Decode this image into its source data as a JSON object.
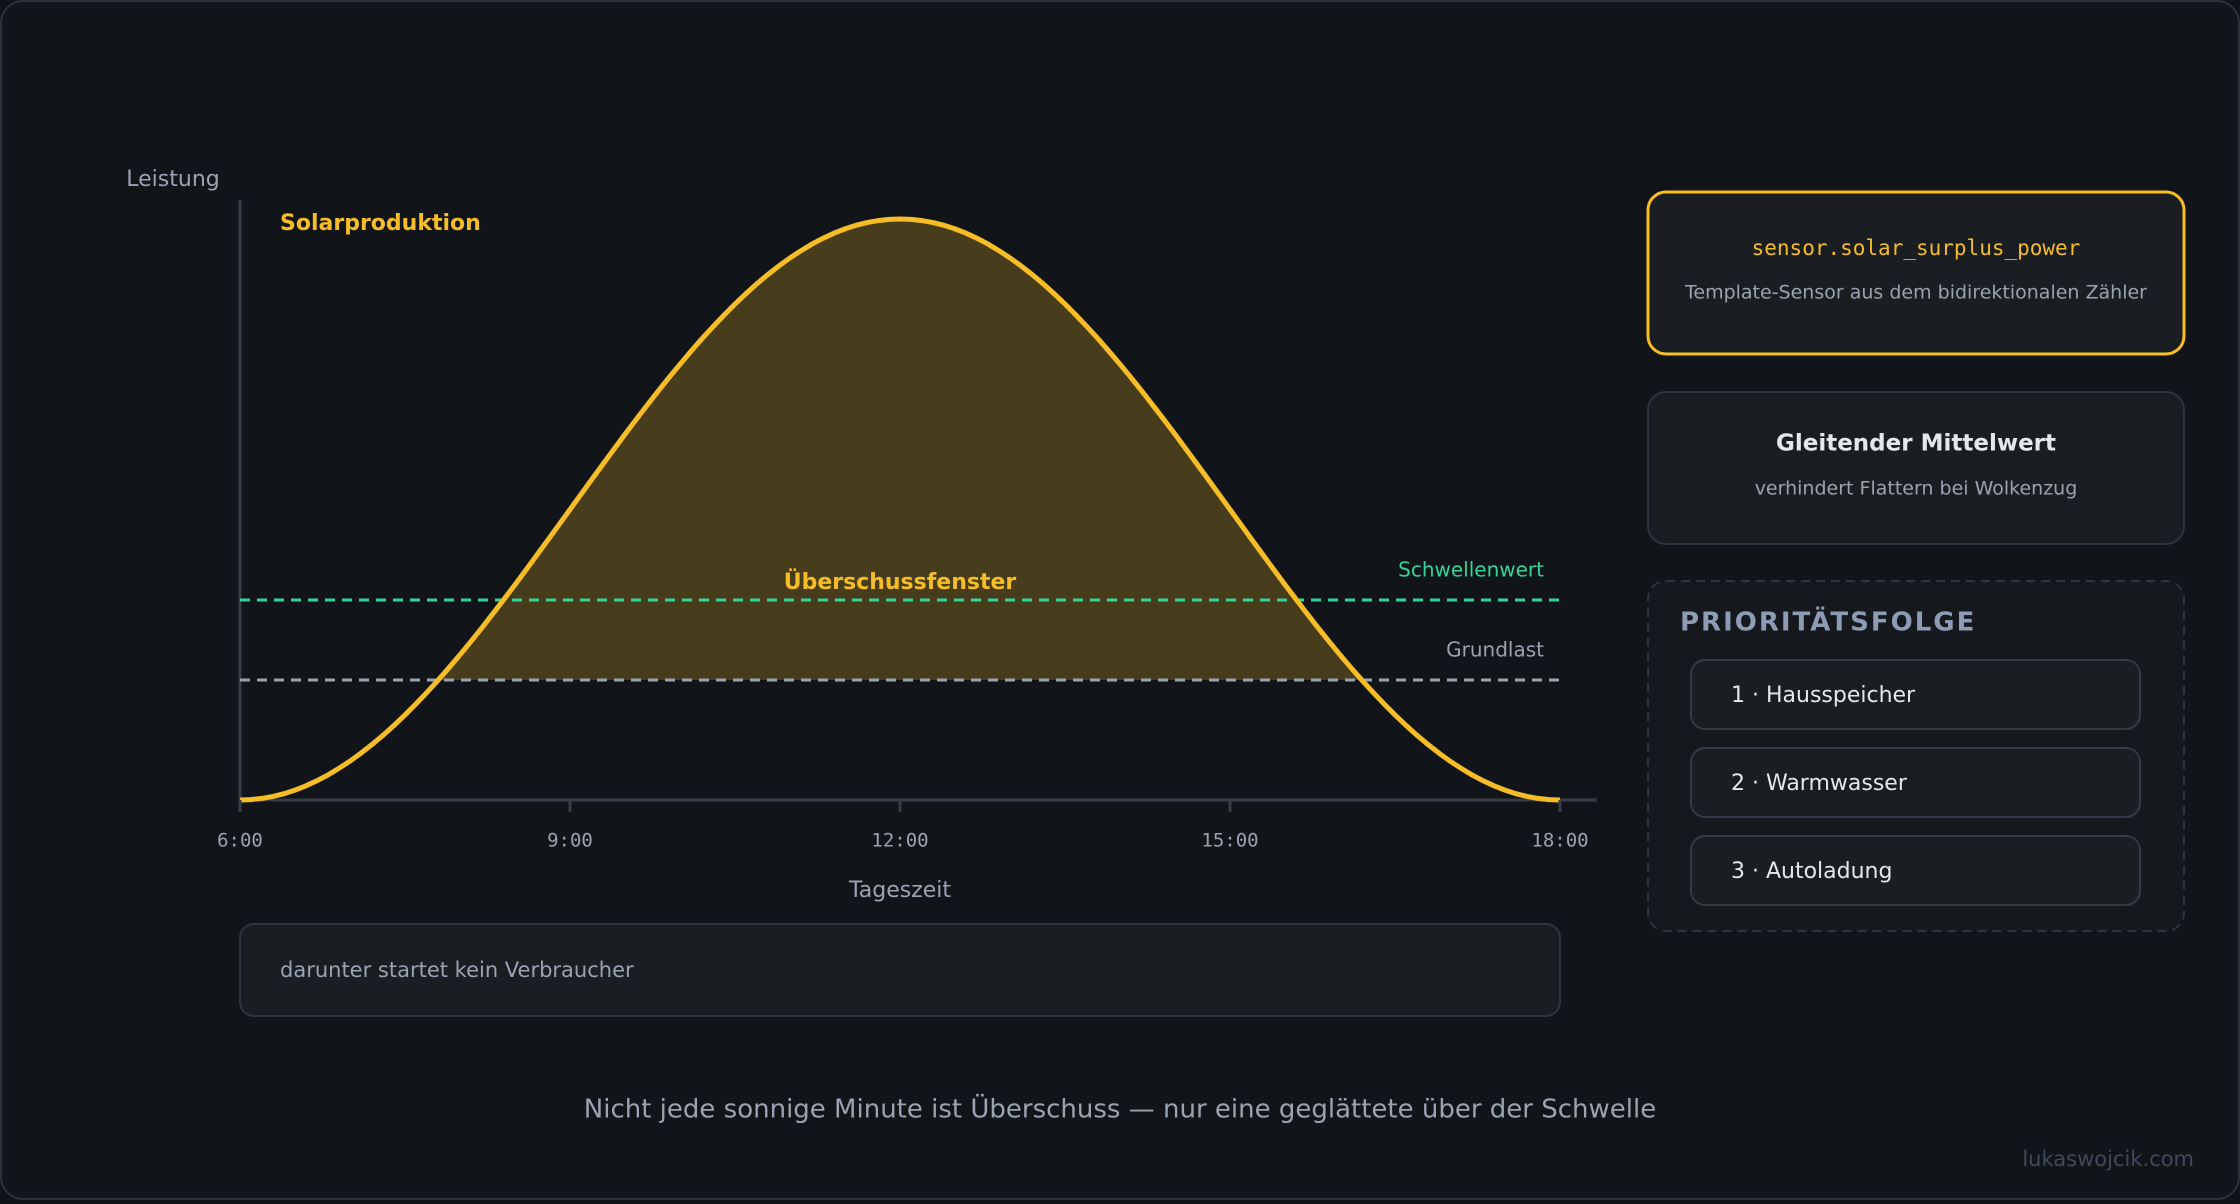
{
  "chart": {
    "y_label": "Leistung",
    "series_label": "Solarproduktion",
    "window_label": "Überschussfenster",
    "threshold_label": "Schwellenwert",
    "baseload_label": "Grundlast",
    "x_ticks": [
      "6:00",
      "9:00",
      "12:00",
      "15:00",
      "18:00"
    ],
    "x_label": "Tageszeit",
    "note": "darunter startet kein Verbraucher"
  },
  "cards": [
    {
      "title": "sensor.solar_surplus_power",
      "subtitle": "Template-Sensor aus dem bidirektionalen Zähler"
    },
    {
      "title": "Gleitender Mittelwert",
      "subtitle": "verhindert Flattern bei Wolkenzug"
    }
  ],
  "priority": {
    "heading": "PRIORITÄTSFOLGE",
    "items": [
      "1 · Hausspeicher",
      "2 · Warmwasser",
      "3 · Autoladung"
    ]
  },
  "caption": "Nicht jede sonnige Minute ist Überschuss — nur eine geglättete über der Schwelle",
  "footer": "lukaswojcik.com"
}
